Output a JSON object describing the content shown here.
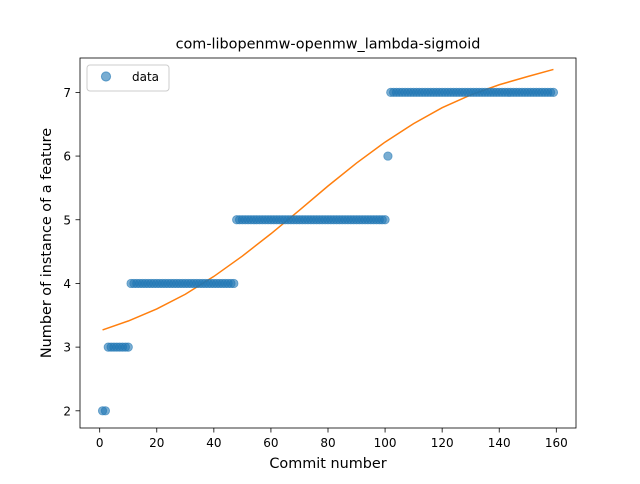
{
  "chart_data": {
    "type": "scatter",
    "title": "com-libopenmw-openmw_lambda-sigmoid",
    "xlabel": "Commit number",
    "ylabel": "Number of instance of a feature",
    "xlim": [
      -6.9,
      166.9
    ],
    "ylim": [
      1.73,
      7.54
    ],
    "xticks": [
      0,
      20,
      40,
      60,
      80,
      100,
      120,
      140,
      160
    ],
    "yticks": [
      2,
      3,
      4,
      5,
      6,
      7
    ],
    "legend": {
      "position": "upper left",
      "entries": [
        "data"
      ]
    },
    "grid": false,
    "series": [
      {
        "name": "data",
        "kind": "points",
        "color": "#1f77b4",
        "alpha": 0.6,
        "segments": [
          {
            "x_from": 1,
            "x_to": 2,
            "y": 2
          },
          {
            "x_from": 3,
            "x_to": 10,
            "y": 3
          },
          {
            "x_from": 11,
            "x_to": 47,
            "y": 4
          },
          {
            "x_from": 48,
            "x_to": 100,
            "y": 5
          },
          {
            "x_from": 101,
            "x_to": 101,
            "y": 6
          },
          {
            "x_from": 102,
            "x_to": 159,
            "y": 7
          }
        ]
      },
      {
        "kind": "line",
        "color": "#ff7f0e",
        "points": [
          [
            1,
            3.27
          ],
          [
            10,
            3.41
          ],
          [
            20,
            3.6
          ],
          [
            30,
            3.83
          ],
          [
            40,
            4.11
          ],
          [
            50,
            4.43
          ],
          [
            60,
            4.78
          ],
          [
            70,
            5.15
          ],
          [
            80,
            5.53
          ],
          [
            90,
            5.89
          ],
          [
            100,
            6.22
          ],
          [
            110,
            6.51
          ],
          [
            120,
            6.76
          ],
          [
            130,
            6.96
          ],
          [
            140,
            7.12
          ],
          [
            150,
            7.25
          ],
          [
            159,
            7.36
          ]
        ]
      }
    ]
  }
}
